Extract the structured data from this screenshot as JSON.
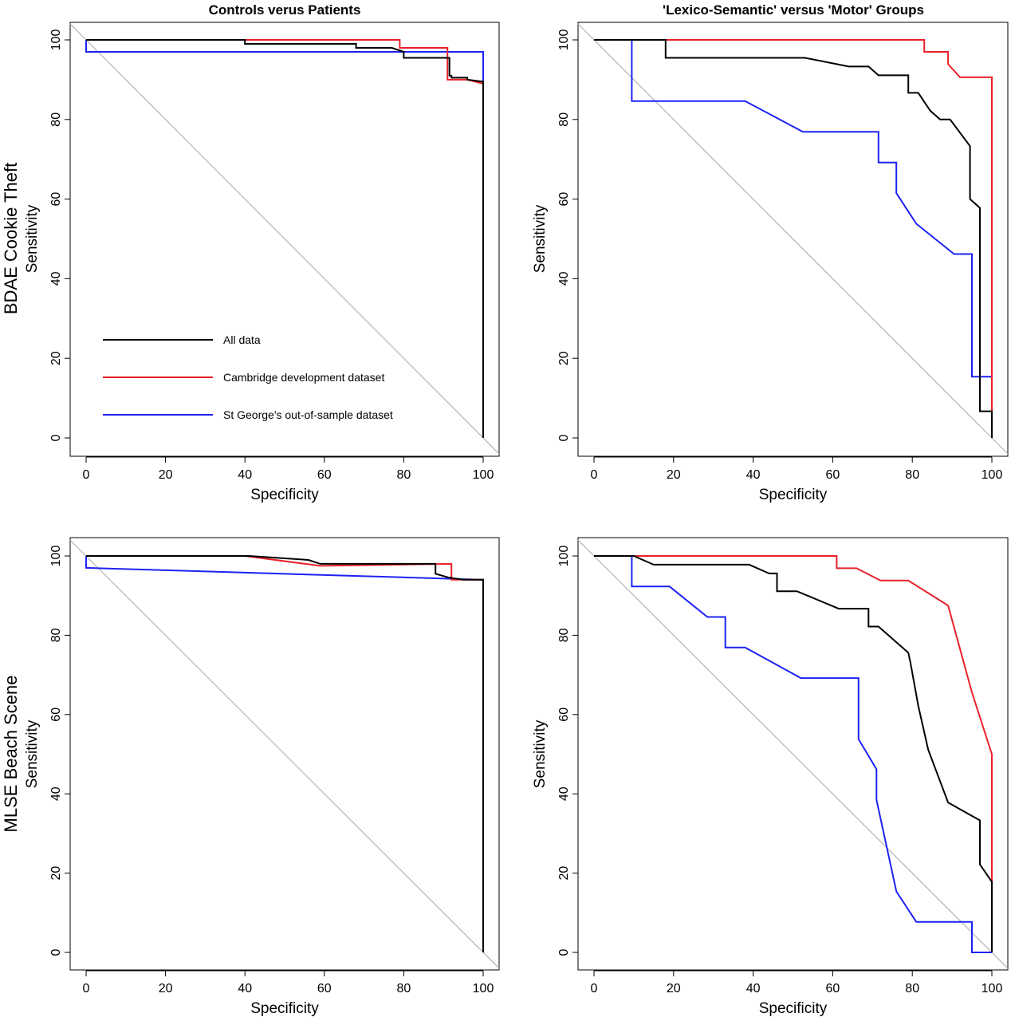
{
  "figure": {
    "column_titles": [
      "Controls verus Patients",
      "'Lexico-Semantic' versus 'Motor' Groups"
    ],
    "row_labels": [
      "BDAE Cookie Theft",
      "MLSE Beach Scene"
    ],
    "legend": [
      {
        "label": "All data",
        "color": "#000000"
      },
      {
        "label": "Cambridge development dataset",
        "color": "#e8202a"
      },
      {
        "label": "St George's out-of-sample dataset",
        "color": "#1c22f2"
      }
    ],
    "diagonal_color": "#b3b3b3"
  },
  "chart_data": [
    {
      "type": "line",
      "title": "Controls verus Patients",
      "row_label": "BDAE Cookie Theft",
      "xlabel": "Specificity",
      "ylabel": "Sensitivity",
      "xlim": [
        0,
        100
      ],
      "ylim": [
        0,
        100
      ],
      "xticks": [
        0,
        20,
        40,
        60,
        80,
        100
      ],
      "yticks": [
        0,
        20,
        40,
        60,
        80,
        100
      ],
      "legend": "left-bottom",
      "reference_line": [
        [
          0,
          100
        ],
        [
          100,
          0
        ]
      ],
      "series": [
        {
          "name": "All data",
          "color": "#000000",
          "points": [
            [
              0,
              100
            ],
            [
              40,
              100
            ],
            [
              40,
              99
            ],
            [
              68,
              99
            ],
            [
              68,
              98
            ],
            [
              77,
              98
            ],
            [
              80,
              97
            ],
            [
              80,
              95.5
            ],
            [
              91.5,
              95.5
            ],
            [
              91.5,
              91
            ],
            [
              92,
              91
            ],
            [
              92,
              90.5
            ],
            [
              96,
              90.5
            ],
            [
              96,
              90
            ],
            [
              100,
              89.5
            ],
            [
              100,
              0
            ]
          ]
        },
        {
          "name": "Cambridge development dataset",
          "color": "#e8202a",
          "points": [
            [
              0,
              100
            ],
            [
              79,
              100
            ],
            [
              79,
              98
            ],
            [
              91,
              98
            ],
            [
              91,
              90
            ],
            [
              96,
              90
            ],
            [
              96,
              90
            ],
            [
              100,
              89
            ],
            [
              100,
              0
            ]
          ]
        },
        {
          "name": "St George's out-of-sample dataset",
          "color": "#1c22f2",
          "points": [
            [
              0,
              100
            ],
            [
              0,
              97
            ],
            [
              100,
              97
            ],
            [
              100,
              0
            ]
          ]
        }
      ]
    },
    {
      "type": "line",
      "title": "'Lexico-Semantic' versus 'Motor' Groups",
      "row_label": "",
      "xlabel": "Specificity",
      "ylabel": "Sensitivity",
      "xlim": [
        0,
        100
      ],
      "ylim": [
        0,
        100
      ],
      "xticks": [
        0,
        20,
        40,
        60,
        80,
        100
      ],
      "yticks": [
        0,
        20,
        40,
        60,
        80,
        100
      ],
      "reference_line": [
        [
          0,
          100
        ],
        [
          100,
          0
        ]
      ],
      "series": [
        {
          "name": "All data",
          "color": "#000000",
          "points": [
            [
              0,
              100
            ],
            [
              18,
              100
            ],
            [
              18,
              95.5
            ],
            [
              53,
              95.5
            ],
            [
              64,
              93.3
            ],
            [
              69,
              93.3
            ],
            [
              71.5,
              91.1
            ],
            [
              79,
              91.1
            ],
            [
              79,
              86.7
            ],
            [
              81.5,
              86.7
            ],
            [
              84.5,
              82.2
            ],
            [
              87,
              80
            ],
            [
              89.5,
              80
            ],
            [
              94.5,
              73.3
            ],
            [
              94.5,
              60
            ],
            [
              97,
              57.8
            ],
            [
              97,
              6.7
            ],
            [
              100,
              6.7
            ],
            [
              100,
              0
            ]
          ]
        },
        {
          "name": "Cambridge development dataset",
          "color": "#e8202a",
          "points": [
            [
              0,
              100
            ],
            [
              83,
              100
            ],
            [
              83,
              97
            ],
            [
              89,
              97
            ],
            [
              89,
              93.9
            ],
            [
              92,
              90.6
            ],
            [
              100,
              90.6
            ],
            [
              100,
              0
            ]
          ]
        },
        {
          "name": "St George's out-of-sample dataset",
          "color": "#1c22f2",
          "points": [
            [
              0,
              100
            ],
            [
              9.5,
              100
            ],
            [
              9.5,
              84.6
            ],
            [
              38,
              84.6
            ],
            [
              52.5,
              76.9
            ],
            [
              71.5,
              76.9
            ],
            [
              71.5,
              69.2
            ],
            [
              76,
              69.2
            ],
            [
              76,
              61.5
            ],
            [
              81,
              53.8
            ],
            [
              90.5,
              46.2
            ],
            [
              95,
              46.2
            ],
            [
              95,
              15.4
            ],
            [
              100,
              15.4
            ],
            [
              100,
              0
            ]
          ]
        }
      ]
    },
    {
      "type": "line",
      "title": "",
      "row_label": "MLSE Beach Scene",
      "xlabel": "Specificity",
      "ylabel": "Sensitivity",
      "xlim": [
        0,
        100
      ],
      "ylim": [
        0,
        100
      ],
      "xticks": [
        0,
        20,
        40,
        60,
        80,
        100
      ],
      "yticks": [
        0,
        20,
        40,
        60,
        80,
        100
      ],
      "reference_line": [
        [
          0,
          100
        ],
        [
          100,
          0
        ]
      ],
      "series": [
        {
          "name": "All data",
          "color": "#000000",
          "points": [
            [
              0,
              100
            ],
            [
              41,
              100
            ],
            [
              56,
              99
            ],
            [
              59,
              98
            ],
            [
              88,
              98
            ],
            [
              88,
              95.5
            ],
            [
              91.5,
              94.5
            ],
            [
              95,
              94
            ],
            [
              100,
              94
            ],
            [
              100,
              0
            ]
          ]
        },
        {
          "name": "Cambridge development dataset",
          "color": "#e8202a",
          "points": [
            [
              0,
              100
            ],
            [
              40,
              100
            ],
            [
              59,
              97.5
            ],
            [
              92,
              98
            ],
            [
              92,
              94
            ],
            [
              96,
              94
            ],
            [
              100,
              94
            ],
            [
              100,
              0
            ]
          ]
        },
        {
          "name": "St George's out-of-sample dataset",
          "color": "#1c22f2",
          "points": [
            [
              0,
              100
            ],
            [
              0,
              97
            ],
            [
              100,
              94
            ],
            [
              100,
              0
            ]
          ]
        }
      ]
    },
    {
      "type": "line",
      "title": "",
      "row_label": "",
      "xlabel": "Specificity",
      "ylabel": "Sensitivity",
      "xlim": [
        0,
        100
      ],
      "ylim": [
        0,
        100
      ],
      "xticks": [
        0,
        20,
        40,
        60,
        80,
        100
      ],
      "yticks": [
        0,
        20,
        40,
        60,
        80,
        100
      ],
      "reference_line": [
        [
          0,
          100
        ],
        [
          100,
          0
        ]
      ],
      "series": [
        {
          "name": "All data",
          "color": "#000000",
          "points": [
            [
              0,
              100
            ],
            [
              10,
              100
            ],
            [
              15,
              97.8
            ],
            [
              39,
              97.8
            ],
            [
              44,
              95.6
            ],
            [
              46,
              95.6
            ],
            [
              46,
              91.1
            ],
            [
              51,
              91.1
            ],
            [
              61.5,
              86.7
            ],
            [
              69,
              86.7
            ],
            [
              69,
              82.2
            ],
            [
              71.5,
              82.2
            ],
            [
              79,
              75.6
            ],
            [
              79.5,
              73.3
            ],
            [
              81.5,
              62.2
            ],
            [
              84,
              51.1
            ],
            [
              89,
              37.8
            ],
            [
              97,
              33.3
            ],
            [
              97,
              22.2
            ],
            [
              100,
              17.8
            ],
            [
              100,
              0
            ]
          ]
        },
        {
          "name": "Cambridge development dataset",
          "color": "#e8202a",
          "points": [
            [
              0,
              100
            ],
            [
              61,
              100
            ],
            [
              61,
              96.9
            ],
            [
              66,
              96.9
            ],
            [
              72,
              93.8
            ],
            [
              79,
              93.8
            ],
            [
              89,
              87.5
            ],
            [
              95,
              65.6
            ],
            [
              100,
              50
            ],
            [
              100,
              0
            ]
          ]
        },
        {
          "name": "St George's out-of-sample dataset",
          "color": "#1c22f2",
          "points": [
            [
              0,
              100
            ],
            [
              9.5,
              100
            ],
            [
              9.5,
              92.3
            ],
            [
              19,
              92.3
            ],
            [
              28.5,
              84.6
            ],
            [
              33,
              84.6
            ],
            [
              33,
              76.9
            ],
            [
              38,
              76.9
            ],
            [
              52,
              69.2
            ],
            [
              66.5,
              69.2
            ],
            [
              66.5,
              53.8
            ],
            [
              71,
              46.2
            ],
            [
              71,
              38.5
            ],
            [
              76,
              15.4
            ],
            [
              81,
              7.7
            ],
            [
              95,
              7.7
            ],
            [
              95,
              0
            ],
            [
              100,
              0
            ]
          ]
        }
      ]
    }
  ]
}
